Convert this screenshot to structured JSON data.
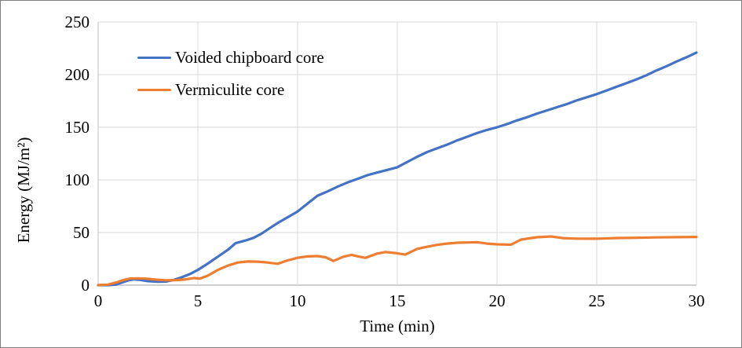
{
  "frame": {
    "background": "#ffffff",
    "border_color": "#7f7f7f"
  },
  "chart_data": {
    "type": "line",
    "title": "",
    "xlabel": "Time (min)",
    "ylabel": "Energy (MJ/m²)",
    "xlim": [
      0,
      30
    ],
    "ylim": [
      0,
      250
    ],
    "x_ticks": [
      0,
      5,
      10,
      15,
      20,
      25,
      30
    ],
    "y_ticks": [
      0,
      50,
      100,
      150,
      200,
      250
    ],
    "grid": true,
    "legend_position": "top-left-inside",
    "gridline_color": "#d9d9d9",
    "axis_line_color": "#bfbfbf",
    "text_color": "#000000",
    "series": [
      {
        "name": "Voided chipboard core",
        "color": "#4472c4",
        "points": [
          [
            0,
            0
          ],
          [
            0.5,
            0
          ],
          [
            0.9,
            0.5
          ],
          [
            1.2,
            2.5
          ],
          [
            1.5,
            4.5
          ],
          [
            1.8,
            5.5
          ],
          [
            2.1,
            5
          ],
          [
            2.5,
            3.8
          ],
          [
            3,
            3.2
          ],
          [
            3.4,
            3.4
          ],
          [
            3.8,
            5
          ],
          [
            4.2,
            7.5
          ],
          [
            4.6,
            10.5
          ],
          [
            5,
            14.5
          ],
          [
            5.5,
            20.5
          ],
          [
            6,
            27
          ],
          [
            6.5,
            33.5
          ],
          [
            6.9,
            40
          ],
          [
            7.4,
            42.5
          ],
          [
            7.8,
            45
          ],
          [
            8.2,
            49
          ],
          [
            8.6,
            54
          ],
          [
            9,
            59
          ],
          [
            9.5,
            64.5
          ],
          [
            10,
            70
          ],
          [
            10.5,
            77.5
          ],
          [
            11,
            85
          ],
          [
            11.5,
            89
          ],
          [
            12,
            93.5
          ],
          [
            12.5,
            97.5
          ],
          [
            13,
            101
          ],
          [
            13.5,
            104.5
          ],
          [
            14,
            107
          ],
          [
            14.5,
            109.5
          ],
          [
            15,
            112
          ],
          [
            15.5,
            117
          ],
          [
            16,
            122
          ],
          [
            16.5,
            126.5
          ],
          [
            17,
            130
          ],
          [
            17.5,
            133.5
          ],
          [
            18,
            137.5
          ],
          [
            18.5,
            141
          ],
          [
            19,
            144.5
          ],
          [
            19.5,
            147.5
          ],
          [
            20,
            150
          ],
          [
            20.5,
            153
          ],
          [
            21,
            156.5
          ],
          [
            21.5,
            159.5
          ],
          [
            22,
            163
          ],
          [
            22.5,
            166
          ],
          [
            23,
            169
          ],
          [
            23.5,
            172
          ],
          [
            24,
            175.5
          ],
          [
            24.5,
            178.5
          ],
          [
            25,
            181.5
          ],
          [
            25.5,
            185
          ],
          [
            26,
            188.5
          ],
          [
            26.5,
            192
          ],
          [
            27,
            195.5
          ],
          [
            27.5,
            199.5
          ],
          [
            28,
            204
          ],
          [
            28.5,
            208
          ],
          [
            29,
            212.5
          ],
          [
            29.5,
            216.5
          ],
          [
            30,
            221
          ]
        ]
      },
      {
        "name": "Vermiculite core",
        "color": "#ed7d31",
        "points": [
          [
            0,
            0
          ],
          [
            0.5,
            0.5
          ],
          [
            0.9,
            2.5
          ],
          [
            1.3,
            5
          ],
          [
            1.6,
            6.3
          ],
          [
            2,
            6.5
          ],
          [
            2.4,
            6.2
          ],
          [
            2.9,
            5.2
          ],
          [
            3.4,
            4.6
          ],
          [
            3.9,
            4.8
          ],
          [
            4.4,
            5.5
          ],
          [
            4.8,
            6.8
          ],
          [
            5.1,
            6.2
          ],
          [
            5.5,
            9
          ],
          [
            6,
            14.5
          ],
          [
            6.5,
            18.5
          ],
          [
            7,
            21.5
          ],
          [
            7.5,
            22.5
          ],
          [
            8,
            22.3
          ],
          [
            8.5,
            21.5
          ],
          [
            9,
            20.3
          ],
          [
            9.5,
            23.5
          ],
          [
            10,
            26
          ],
          [
            10.5,
            27.3
          ],
          [
            11,
            27.6
          ],
          [
            11.4,
            26.5
          ],
          [
            11.8,
            23
          ],
          [
            12.3,
            27
          ],
          [
            12.7,
            28.8
          ],
          [
            13.1,
            27
          ],
          [
            13.4,
            26
          ],
          [
            14,
            30
          ],
          [
            14.4,
            31.5
          ],
          [
            14.9,
            30.5
          ],
          [
            15.4,
            29
          ],
          [
            16,
            34.5
          ],
          [
            16.5,
            36.5
          ],
          [
            17,
            38.3
          ],
          [
            17.5,
            39.5
          ],
          [
            18,
            40.3
          ],
          [
            18.5,
            40.5
          ],
          [
            19,
            40.8
          ],
          [
            19.5,
            39.5
          ],
          [
            20,
            38.8
          ],
          [
            20.7,
            38.4
          ],
          [
            21.2,
            43.3
          ],
          [
            22,
            45.5
          ],
          [
            22.7,
            46.3
          ],
          [
            23.3,
            44.7
          ],
          [
            24,
            44.2
          ],
          [
            25,
            44.1
          ],
          [
            26,
            44.8
          ],
          [
            27,
            45
          ],
          [
            28,
            45.4
          ],
          [
            29,
            45.6
          ],
          [
            30,
            45.8
          ]
        ]
      }
    ]
  }
}
